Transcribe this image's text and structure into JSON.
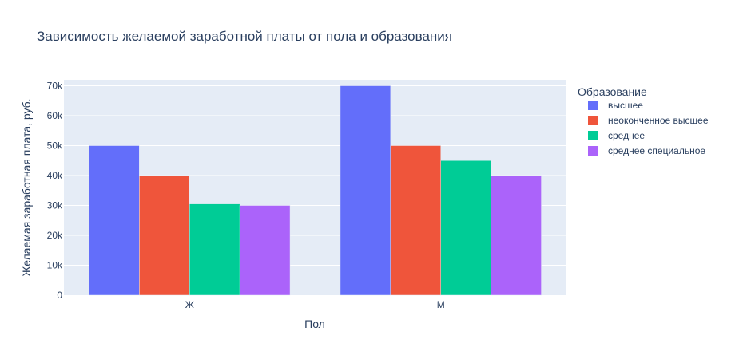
{
  "chart_data": {
    "type": "bar",
    "title": "Зависимость желаемой заработной платы от пола и образования",
    "xlabel": "Пол",
    "ylabel": "Желаемая заработная плата, руб.",
    "categories": [
      "Ж",
      "М"
    ],
    "ylim": [
      0,
      72000
    ],
    "yticks": [
      {
        "value": 0,
        "label": "0"
      },
      {
        "value": 10000,
        "label": "10k"
      },
      {
        "value": 20000,
        "label": "20k"
      },
      {
        "value": 30000,
        "label": "30k"
      },
      {
        "value": 40000,
        "label": "40k"
      },
      {
        "value": 50000,
        "label": "50k"
      },
      {
        "value": 60000,
        "label": "60k"
      },
      {
        "value": 70000,
        "label": "70k"
      }
    ],
    "grid": true,
    "legend_title": "Образование",
    "legend_position": "right",
    "series": [
      {
        "name": "высшее",
        "color": "#636efa",
        "values": [
          50000,
          70000
        ]
      },
      {
        "name": "неоконченное высшее",
        "color": "#ef553b",
        "values": [
          40000,
          50000
        ]
      },
      {
        "name": "среднее",
        "color": "#00cc96",
        "values": [
          30500,
          45000
        ]
      },
      {
        "name": "среднее специальное",
        "color": "#ab63fa",
        "values": [
          30000,
          40000
        ]
      }
    ]
  }
}
